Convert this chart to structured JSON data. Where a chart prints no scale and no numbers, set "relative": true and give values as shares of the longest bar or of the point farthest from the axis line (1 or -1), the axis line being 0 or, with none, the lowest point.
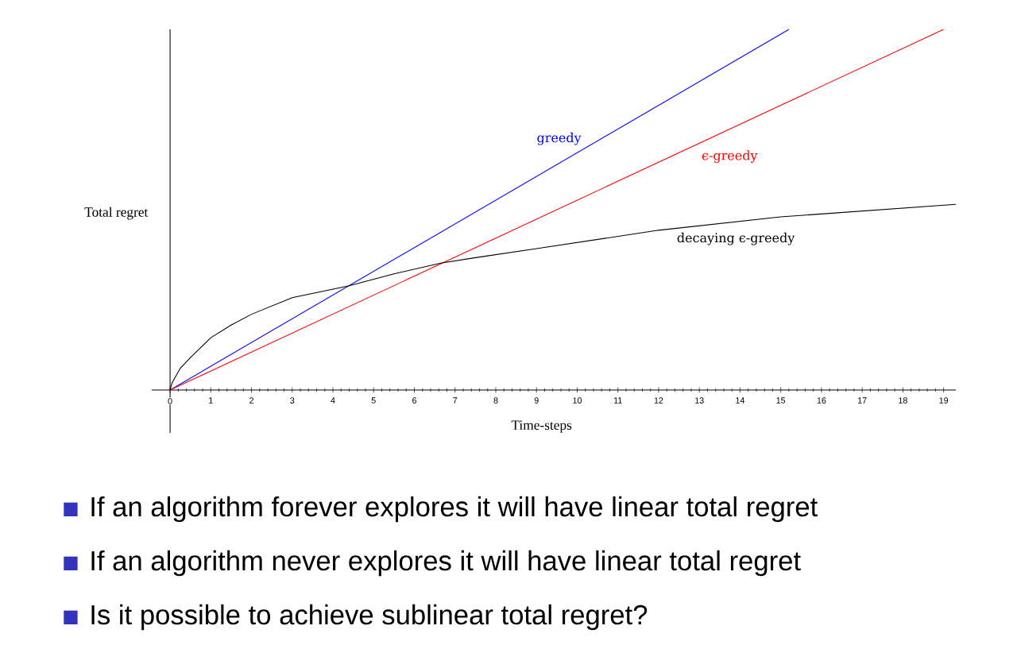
{
  "chart_data": {
    "type": "line",
    "relative": true,
    "xlabel": "Time-steps",
    "ylabel": "Total regret",
    "xlim": [
      -0.45,
      19.3
    ],
    "xticks": [
      0,
      1,
      2,
      3,
      4,
      5,
      6,
      7,
      8,
      9,
      10,
      11,
      12,
      13,
      14,
      15,
      16,
      17,
      18,
      19
    ],
    "legend": false,
    "marker": "none",
    "line_style": "solid",
    "tick_labels": "x",
    "series": [
      {
        "name": "greedy",
        "color": "#0000ff",
        "x": [
          0,
          15.2
        ],
        "values": [
          0,
          1
        ]
      },
      {
        "name": "ϵ-greedy",
        "color": "#ff0000",
        "x": [
          0,
          19.0
        ],
        "values": [
          0,
          1
        ]
      },
      {
        "name": "decaying ϵ-greedy",
        "color": "#000000",
        "x": [
          0,
          0.05,
          0.1,
          0.25,
          0.5,
          1,
          1.5,
          2,
          3,
          4.4,
          5.5,
          6.65,
          7.5,
          9,
          12,
          15,
          19.3
        ],
        "values": [
          0,
          0.02,
          0.03,
          0.06,
          0.09,
          0.145,
          0.18,
          0.21,
          0.256,
          0.289,
          0.322,
          0.352,
          0.367,
          0.392,
          0.443,
          0.48,
          0.515
        ]
      }
    ],
    "annotations": [
      "If an algorithm forever explores it will have linear total regret",
      "If an algorithm never explores it will have linear total regret",
      "Is it possible to achieve sublinear total regret?"
    ]
  }
}
